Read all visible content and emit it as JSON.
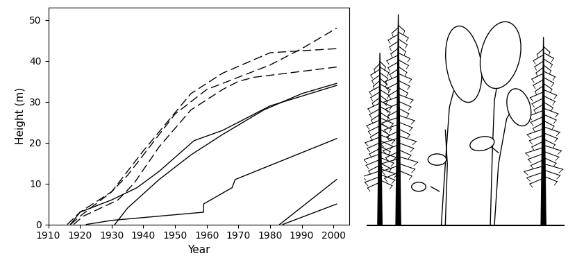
{
  "chart_data": {
    "type": "line",
    "x_label": "Year",
    "y_label": "Height (m)",
    "xlim": [
      1910,
      2005
    ],
    "xticks": [
      1910,
      1920,
      1930,
      1940,
      1950,
      1960,
      1970,
      1980,
      1990,
      2000
    ],
    "ylim": [
      0,
      53
    ],
    "yticks": [
      0,
      10,
      20,
      30,
      40,
      50
    ],
    "series": [
      {
        "color": "#000000",
        "line_style": "dashed",
        "x": [
          1916,
          1920,
          1930,
          1935,
          1945,
          1950,
          1955,
          1960,
          1970,
          1980,
          1990,
          2001
        ],
        "values": [
          0,
          3,
          8,
          12,
          22,
          27,
          30,
          33,
          36,
          39,
          43,
          48
        ]
      },
      {
        "color": "#000000",
        "line_style": "dashed",
        "x": [
          1917,
          1920,
          1930,
          1940,
          1955,
          1965,
          1980,
          2001
        ],
        "values": [
          0,
          2,
          8,
          18,
          32,
          37,
          42,
          43
        ]
      },
      {
        "color": "#000000",
        "line_style": "dashed",
        "x": [
          1918,
          1921,
          1932,
          1937,
          1945,
          1955,
          1965,
          1970,
          1975,
          2001
        ],
        "values": [
          0,
          2,
          6,
          10,
          19,
          28,
          33,
          35,
          36,
          38.5
        ]
      },
      {
        "color": "#000000",
        "line_style": "solid",
        "x": [
          1917,
          1920,
          1930,
          1938,
          1945,
          1956,
          1965,
          1980,
          2001
        ],
        "values": [
          0,
          3,
          6,
          9,
          13,
          20.5,
          23,
          29,
          34
        ]
      },
      {
        "color": "#000000",
        "line_style": "solid",
        "x": [
          1931,
          1935,
          1945,
          1955,
          1965,
          1978,
          1990,
          2001
        ],
        "values": [
          0,
          4,
          11,
          17,
          22,
          28,
          32,
          34.5
        ]
      },
      {
        "color": "#000000",
        "line_style": "solid",
        "x": [
          1922,
          1930,
          1959,
          1959,
          1968,
          1969,
          2001
        ],
        "values": [
          0,
          1,
          3,
          5,
          9,
          11,
          21
        ]
      },
      {
        "color": "#000000",
        "line_style": "solid",
        "x": [
          1983,
          2001
        ],
        "values": [
          0,
          11
        ]
      },
      {
        "color": "#000000",
        "line_style": "solid",
        "x": [
          1984,
          2001
        ],
        "values": [
          0,
          5
        ]
      }
    ]
  }
}
